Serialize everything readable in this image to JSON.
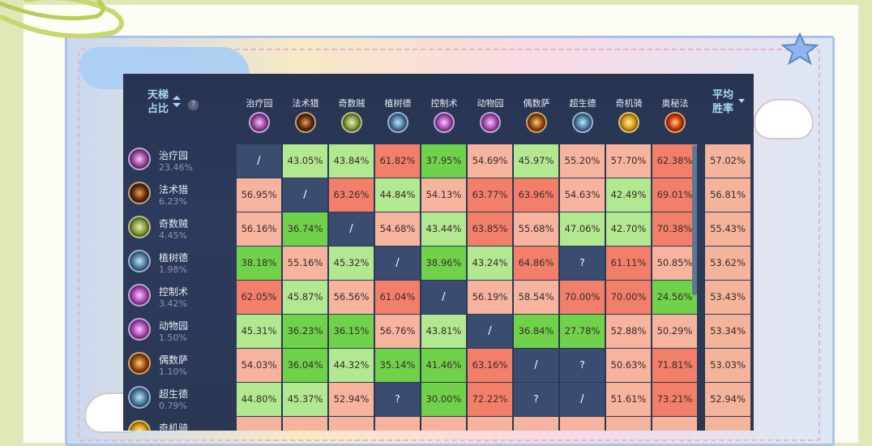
{
  "colors": {
    "self_cell": "#3a4d70",
    "unknown_cell": "#3a4d70",
    "green_strong": "#70d24a",
    "green_light": "#b2e890",
    "red_strong": "#f27f6a",
    "red_light": "#f6b39d"
  },
  "header": {
    "ladder_line1": "天梯",
    "ladder_line2": "占比",
    "help": "?",
    "avg_line1": "平均",
    "avg_line2": "胜率"
  },
  "columns": [
    {
      "name": "治疗园",
      "icon": "priest-icon"
    },
    {
      "name": "法术猎",
      "icon": "hunter-icon"
    },
    {
      "name": "奇数贼",
      "icon": "rogue-icon"
    },
    {
      "name": "植树德",
      "icon": "druid-icon"
    },
    {
      "name": "控制术",
      "icon": "warlock-icon"
    },
    {
      "name": "动物园",
      "icon": "warlock-icon"
    },
    {
      "name": "偶数萨",
      "icon": "shaman-icon"
    },
    {
      "name": "超生德",
      "icon": "druid-icon"
    },
    {
      "name": "奇机骑",
      "icon": "paladin-icon"
    },
    {
      "name": "奥秘法",
      "icon": "mage-icon"
    }
  ],
  "rows": [
    {
      "name": "治疗园",
      "share": "23.46%",
      "icon": "priest-icon",
      "avg": "57.02%",
      "cells": [
        "/",
        "43.05%",
        "43.84%",
        "61.82%",
        "37.95%",
        "54.69%",
        "45.97%",
        "55.20%",
        "57.70%",
        "62.38%"
      ]
    },
    {
      "name": "法术猎",
      "share": "6.23%",
      "icon": "hunter-icon",
      "avg": "56.81%",
      "cells": [
        "56.95%",
        "/",
        "63.26%",
        "44.84%",
        "54.13%",
        "63.77%",
        "63.96%",
        "54.63%",
        "42.49%",
        "69.01%"
      ]
    },
    {
      "name": "奇数贼",
      "share": "4.45%",
      "icon": "rogue-icon",
      "avg": "55.43%",
      "cells": [
        "56.16%",
        "36.74%",
        "/",
        "54.68%",
        "43.44%",
        "63.85%",
        "55.68%",
        "47.06%",
        "42.70%",
        "70.38%"
      ]
    },
    {
      "name": "植树德",
      "share": "1.98%",
      "icon": "druid-icon",
      "avg": "53.62%",
      "cells": [
        "38.18%",
        "55.16%",
        "45.32%",
        "/",
        "38.96%",
        "43.24%",
        "64.86%",
        "?",
        "61.11%",
        "50.85%"
      ]
    },
    {
      "name": "控制术",
      "share": "3.42%",
      "icon": "warlock-icon",
      "avg": "53.43%",
      "cells": [
        "62.05%",
        "45.87%",
        "56.56%",
        "61.04%",
        "/",
        "56.19%",
        "58.54%",
        "70.00%",
        "70.00%",
        "24.56%"
      ]
    },
    {
      "name": "动物园",
      "share": "1.50%",
      "icon": "warlock-icon",
      "avg": "53.34%",
      "cells": [
        "45.31%",
        "36.23%",
        "36.15%",
        "56.76%",
        "43.81%",
        "/",
        "36.84%",
        "27.78%",
        "52.88%",
        "50.29%"
      ]
    },
    {
      "name": "偶数萨",
      "share": "1.10%",
      "icon": "shaman-icon",
      "avg": "53.03%",
      "cells": [
        "54.03%",
        "36.04%",
        "44.32%",
        "35.14%",
        "41.46%",
        "63.16%",
        "/",
        "?",
        "50.63%",
        "71.81%"
      ]
    },
    {
      "name": "超生德",
      "share": "0.79%",
      "icon": "druid-icon",
      "avg": "52.94%",
      "cells": [
        "44.80%",
        "45.37%",
        "52.94%",
        "?",
        "30.00%",
        "72.22%",
        "?",
        "/",
        "51.61%",
        "73.21%"
      ]
    },
    {
      "name": "奇机骑",
      "share": "",
      "icon": "paladin-icon",
      "avg": "",
      "cells": [
        "",
        "",
        "",
        "",
        "",
        "",
        "",
        "",
        "",
        ""
      ]
    }
  ]
}
